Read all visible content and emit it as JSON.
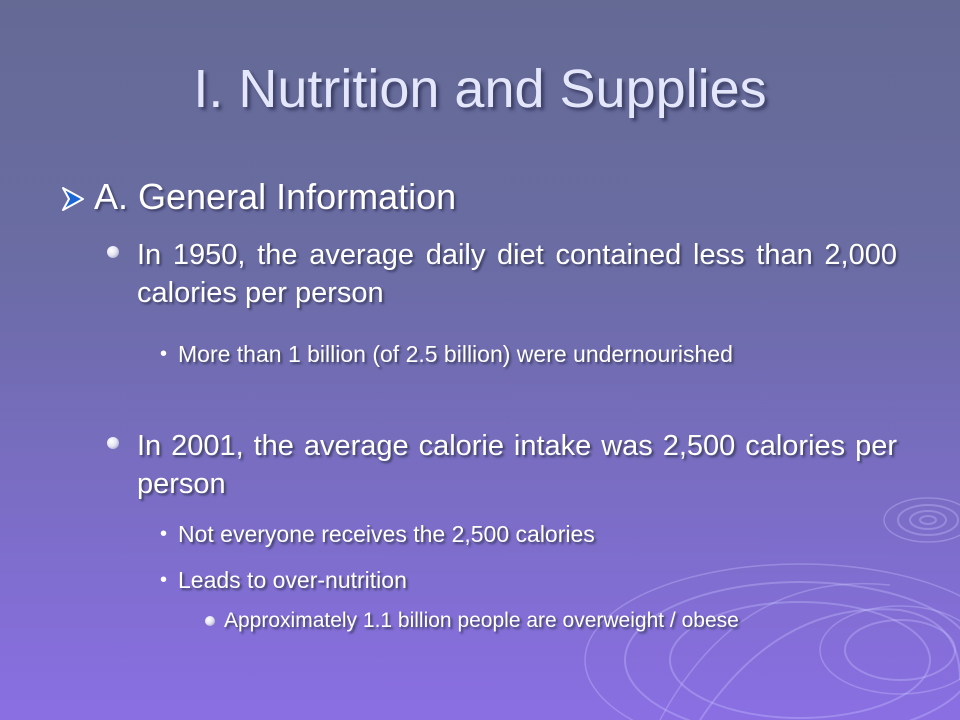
{
  "slide": {
    "title": "I. Nutrition and Supplies",
    "heading": "A. General Information",
    "points": [
      {
        "text": "In 1950, the average daily diet contained less than 2,000 calories per person",
        "subpoints": [
          "More than 1 billion (of 2.5 billion) were undernourished"
        ]
      },
      {
        "text": "In 2001, the average calorie intake was 2,500 calories per person",
        "subpoints": [
          "Not everyone receives the 2,500 calories",
          "Leads to over-nutrition"
        ],
        "detail": "Approximately 1.1 billion people are overweight / obese"
      }
    ]
  },
  "colors": {
    "background_top": "#646a94",
    "background_bottom": "#8a6fe3",
    "title": "#e4e6fa",
    "text": "#ffffff",
    "arrow_bullet": "#1a66d6"
  },
  "icons": {
    "heading_bullet": "arrow-bullet-icon",
    "point_bullet": "round-bullet-icon",
    "subpoint_bullet": "dot-bullet-icon"
  }
}
